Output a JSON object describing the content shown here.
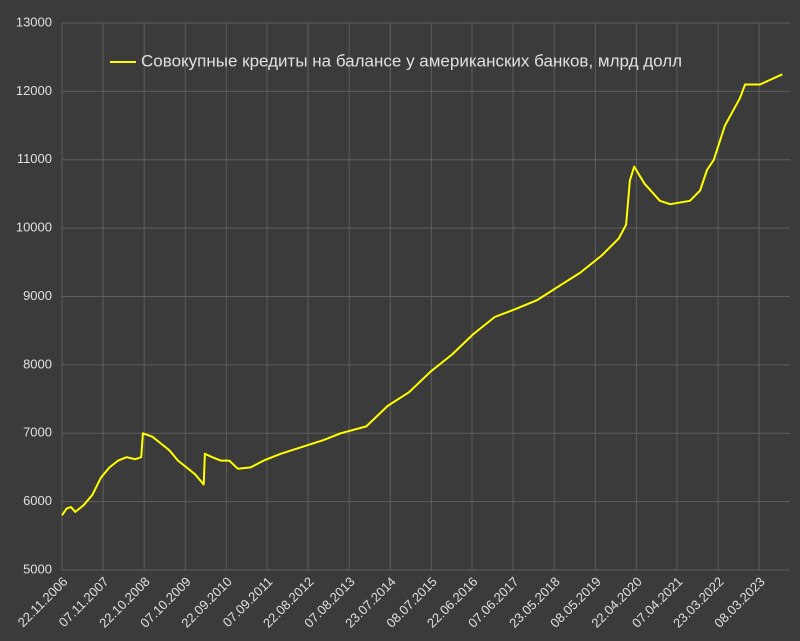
{
  "chart_data": {
    "type": "line",
    "x": [
      2006.89,
      2007.0,
      2007.1,
      2007.2,
      2007.4,
      2007.6,
      2007.8,
      2008.0,
      2008.2,
      2008.4,
      2008.6,
      2008.74,
      2008.78,
      2009.0,
      2009.2,
      2009.4,
      2009.6,
      2009.8,
      2010.0,
      2010.2,
      2010.23,
      2010.4,
      2010.6,
      2010.8,
      2011.0,
      2011.3,
      2011.6,
      2012.0,
      2012.5,
      2013.0,
      2013.4,
      2014.0,
      2014.5,
      2015.0,
      2015.5,
      2016.0,
      2016.5,
      2017.0,
      2017.5,
      2018.0,
      2018.5,
      2019.0,
      2019.5,
      2019.9,
      2020.07,
      2020.16,
      2020.26,
      2020.5,
      2020.86,
      2021.1,
      2021.56,
      2021.8,
      2021.96,
      2022.12,
      2022.38,
      2022.73,
      2022.85,
      2023.2,
      2023.72
    ],
    "series": [
      {
        "name": "Совокупные кредиты на балансе у американских банков, млрд долл",
        "color": "#ffff00",
        "values": [
          5800,
          5900,
          5920,
          5850,
          5950,
          6100,
          6350,
          6500,
          6600,
          6650,
          6620,
          6650,
          7000,
          6950,
          6850,
          6750,
          6600,
          6500,
          6400,
          6250,
          6700,
          6650,
          6600,
          6600,
          6480,
          6500,
          6600,
          6700,
          6800,
          6900,
          7000,
          7100,
          7400,
          7600,
          7900,
          8150,
          8450,
          8700,
          8820,
          8950,
          9150,
          9350,
          9600,
          9850,
          10050,
          10700,
          10900,
          10650,
          10400,
          10350,
          10400,
          10550,
          10850,
          11000,
          11500,
          11900,
          12100,
          12100,
          12250
        ]
      }
    ],
    "xlim": [
      2006.89,
      2023.9
    ],
    "xticks": [
      {
        "value": 2006.89,
        "label": "22.11.2006"
      },
      {
        "value": 2007.85,
        "label": "07.11.2007"
      },
      {
        "value": 2008.81,
        "label": "22.10.2008"
      },
      {
        "value": 2009.77,
        "label": "07.10.2009"
      },
      {
        "value": 2010.73,
        "label": "22.09.2010"
      },
      {
        "value": 2011.68,
        "label": "07.09.2011"
      },
      {
        "value": 2012.64,
        "label": "22.08.2012"
      },
      {
        "value": 2013.6,
        "label": "07.08.2013"
      },
      {
        "value": 2014.56,
        "label": "23.07.2014"
      },
      {
        "value": 2015.52,
        "label": "08.07.2015"
      },
      {
        "value": 2016.47,
        "label": "22.06.2016"
      },
      {
        "value": 2017.43,
        "label": "07.06.2017"
      },
      {
        "value": 2018.39,
        "label": "23.05.2018"
      },
      {
        "value": 2019.35,
        "label": "08.05.2019"
      },
      {
        "value": 2020.31,
        "label": "22.04.2020"
      },
      {
        "value": 2021.26,
        "label": "07.04.2021"
      },
      {
        "value": 2022.22,
        "label": "23.03.2022"
      },
      {
        "value": 2023.18,
        "label": "08.03.2023"
      }
    ],
    "ylim": [
      5000,
      13000
    ],
    "yticks": [
      5000,
      6000,
      7000,
      8000,
      9000,
      10000,
      11000,
      12000,
      13000
    ],
    "grid": true
  }
}
